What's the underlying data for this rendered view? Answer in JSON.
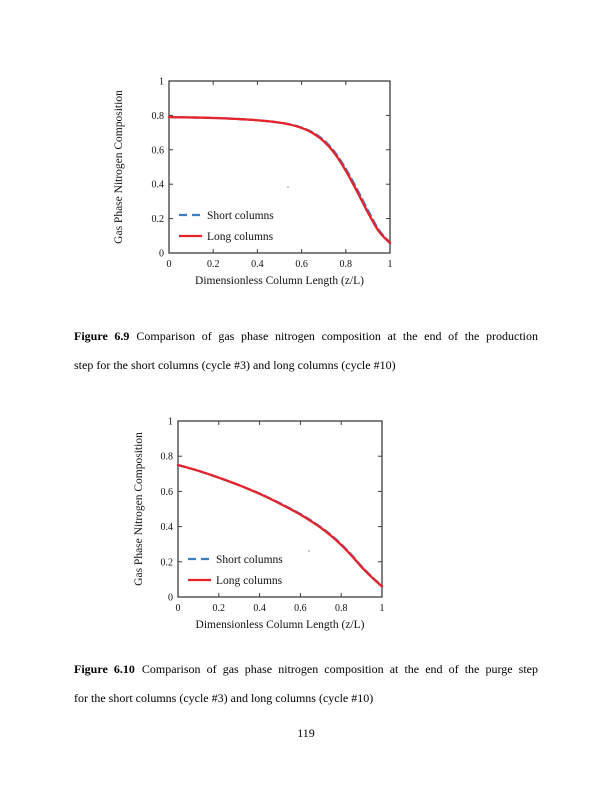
{
  "document": {
    "page_number": "119",
    "figures": [
      {
        "label": "Figure 6.9",
        "caption_line1": "Comparison of gas phase nitrogen composition at the end of the production",
        "caption_line2": "step for the short columns (cycle #3) and long columns (cycle #10)"
      },
      {
        "label": "Figure 6.10",
        "caption_line1": "Comparison of gas phase nitrogen composition at the end of the purge step",
        "caption_line2": "for the short columns (cycle #3) and long columns (cycle #10)"
      }
    ]
  },
  "chart_data": [
    {
      "type": "line",
      "title": "",
      "xlabel": "Dimensionless Column Length (z/L)",
      "ylabel": "Gas Phase Nitrogen Composition",
      "xlim": [
        0,
        1
      ],
      "ylim": [
        0,
        1
      ],
      "xticks": [
        0,
        0.2,
        0.4,
        0.6,
        0.8,
        1
      ],
      "yticks": [
        0,
        0.2,
        0.4,
        0.6,
        0.8,
        1
      ],
      "grid": false,
      "legend_position": "lower-left",
      "axis_color": "#3c3c3c",
      "x": [
        0,
        0.05,
        0.1,
        0.15,
        0.2,
        0.25,
        0.3,
        0.35,
        0.4,
        0.45,
        0.5,
        0.55,
        0.6,
        0.65,
        0.7,
        0.75,
        0.8,
        0.85,
        0.9,
        0.95,
        1
      ],
      "series": [
        {
          "name": "Short columns",
          "color": "#3e7dc1",
          "style": "dashed",
          "values": [
            0.79,
            0.789,
            0.788,
            0.787,
            0.785,
            0.783,
            0.78,
            0.776,
            0.772,
            0.766,
            0.758,
            0.747,
            0.729,
            0.701,
            0.656,
            0.586,
            0.489,
            0.373,
            0.248,
            0.133,
            0.06
          ]
        },
        {
          "name": "Long columns",
          "color": "#e8222a",
          "style": "solid",
          "values": [
            0.79,
            0.789,
            0.788,
            0.787,
            0.785,
            0.783,
            0.78,
            0.776,
            0.772,
            0.766,
            0.758,
            0.746,
            0.727,
            0.697,
            0.65,
            0.578,
            0.478,
            0.36,
            0.235,
            0.125,
            0.058
          ]
        }
      ]
    },
    {
      "type": "line",
      "title": "",
      "xlabel": "Dimensionless Column Length (z/L)",
      "ylabel": "Gas Phase Nitrogen Composition",
      "xlim": [
        0,
        1
      ],
      "ylim": [
        0,
        1
      ],
      "xticks": [
        0,
        0.2,
        0.4,
        0.6,
        0.8,
        1
      ],
      "yticks": [
        0,
        0.2,
        0.4,
        0.6,
        0.8,
        1
      ],
      "grid": false,
      "legend_position": "lower-left",
      "axis_color": "#3c3c3c",
      "x": [
        0,
        0.05,
        0.1,
        0.15,
        0.2,
        0.25,
        0.3,
        0.35,
        0.4,
        0.45,
        0.5,
        0.55,
        0.6,
        0.65,
        0.7,
        0.75,
        0.8,
        0.85,
        0.9,
        0.95,
        1
      ],
      "series": [
        {
          "name": "Short columns",
          "color": "#3e7dc1",
          "style": "dashed",
          "values": [
            0.75,
            0.734,
            0.717,
            0.698,
            0.678,
            0.657,
            0.635,
            0.612,
            0.588,
            0.561,
            0.533,
            0.503,
            0.471,
            0.436,
            0.397,
            0.352,
            0.3,
            0.24,
            0.174,
            0.115,
            0.062
          ]
        },
        {
          "name": "Long columns",
          "color": "#e8222a",
          "style": "solid",
          "values": [
            0.75,
            0.734,
            0.717,
            0.698,
            0.678,
            0.657,
            0.635,
            0.611,
            0.586,
            0.559,
            0.53,
            0.5,
            0.468,
            0.432,
            0.393,
            0.348,
            0.296,
            0.236,
            0.17,
            0.112,
            0.06
          ]
        }
      ]
    }
  ]
}
